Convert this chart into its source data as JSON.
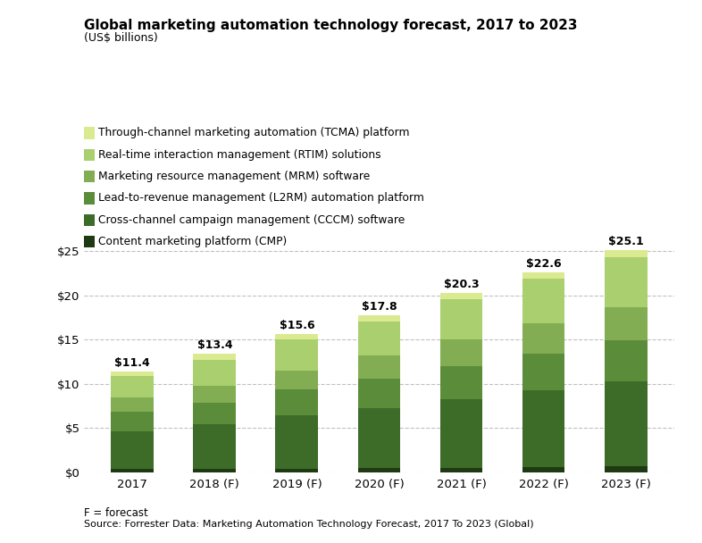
{
  "title": "Global marketing automation technology forecast, 2017 to 2023",
  "subtitle": "(US$ billions)",
  "categories": [
    "2017",
    "2018 (F)",
    "2019 (F)",
    "2020 (F)",
    "2021 (F)",
    "2022 (F)",
    "2023 (F)"
  ],
  "totals": [
    11.4,
    13.4,
    15.6,
    17.8,
    20.3,
    22.6,
    25.1
  ],
  "segments": {
    "CMP": [
      0.35,
      0.4,
      0.45,
      0.5,
      0.55,
      0.65,
      0.75
    ],
    "CCCM": [
      4.3,
      5.0,
      6.0,
      6.8,
      7.7,
      8.6,
      9.5
    ],
    "L2RM": [
      2.2,
      2.5,
      2.9,
      3.3,
      3.8,
      4.2,
      4.65
    ],
    "MRM": [
      1.6,
      1.9,
      2.2,
      2.6,
      3.0,
      3.4,
      3.8
    ],
    "RTIM": [
      2.4,
      2.9,
      3.45,
      3.9,
      4.5,
      5.0,
      5.6
    ],
    "TCMA": [
      0.55,
      0.7,
      0.6,
      0.7,
      0.75,
      0.75,
      0.8
    ]
  },
  "colors": {
    "CMP": "#1e3a12",
    "CCCM": "#3d6b28",
    "L2RM": "#5a8c3a",
    "MRM": "#82ad52",
    "RTIM": "#aacf6e",
    "TCMA": "#daea90"
  },
  "legend_labels": {
    "TCMA": "Through-channel marketing automation (TCMA) platform",
    "RTIM": "Real-time interaction management (RTIM) solutions",
    "MRM": "Marketing resource management (MRM) software",
    "L2RM": "Lead-to-revenue management (L2RM) automation platform",
    "CCCM": "Cross-channel campaign management (CCCM) software",
    "CMP": "Content marketing platform (CMP)"
  },
  "ylim": [
    0,
    27
  ],
  "yticks": [
    0,
    5,
    10,
    15,
    20,
    25
  ],
  "ytick_labels": [
    "$0",
    "$5",
    "$10",
    "$15",
    "$20",
    "$25"
  ],
  "footnote": "F = forecast",
  "source": "Source: Forrester Data: Marketing Automation Technology Forecast, 2017 To 2023 (Global)",
  "background_color": "#ffffff",
  "bar_width": 0.52
}
